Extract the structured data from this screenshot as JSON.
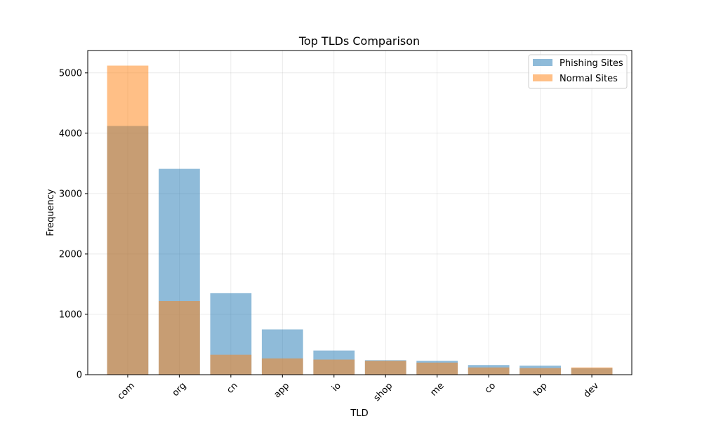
{
  "chart_data": {
    "type": "bar",
    "title": "Top TLDs Comparison",
    "xlabel": "TLD",
    "ylabel": "Frequency",
    "categories": [
      "com",
      "org",
      "cn",
      "app",
      "io",
      "shop",
      "me",
      "co",
      "top",
      "dev"
    ],
    "series": [
      {
        "name": "Phishing Sites",
        "color": "#1f77b4",
        "opacity": 0.5,
        "values": [
          4120,
          3410,
          1350,
          750,
          400,
          240,
          230,
          160,
          150,
          110
        ]
      },
      {
        "name": "Normal Sites",
        "color": "#ff7f0e",
        "opacity": 0.5,
        "values": [
          5120,
          1220,
          330,
          270,
          250,
          230,
          200,
          120,
          110,
          120
        ]
      }
    ],
    "ylim": [
      0,
      5370
    ],
    "yticks": [
      0,
      1000,
      2000,
      3000,
      4000,
      5000
    ],
    "grid": true,
    "legend_position": "top-right",
    "x_tick_rotation": 45
  }
}
